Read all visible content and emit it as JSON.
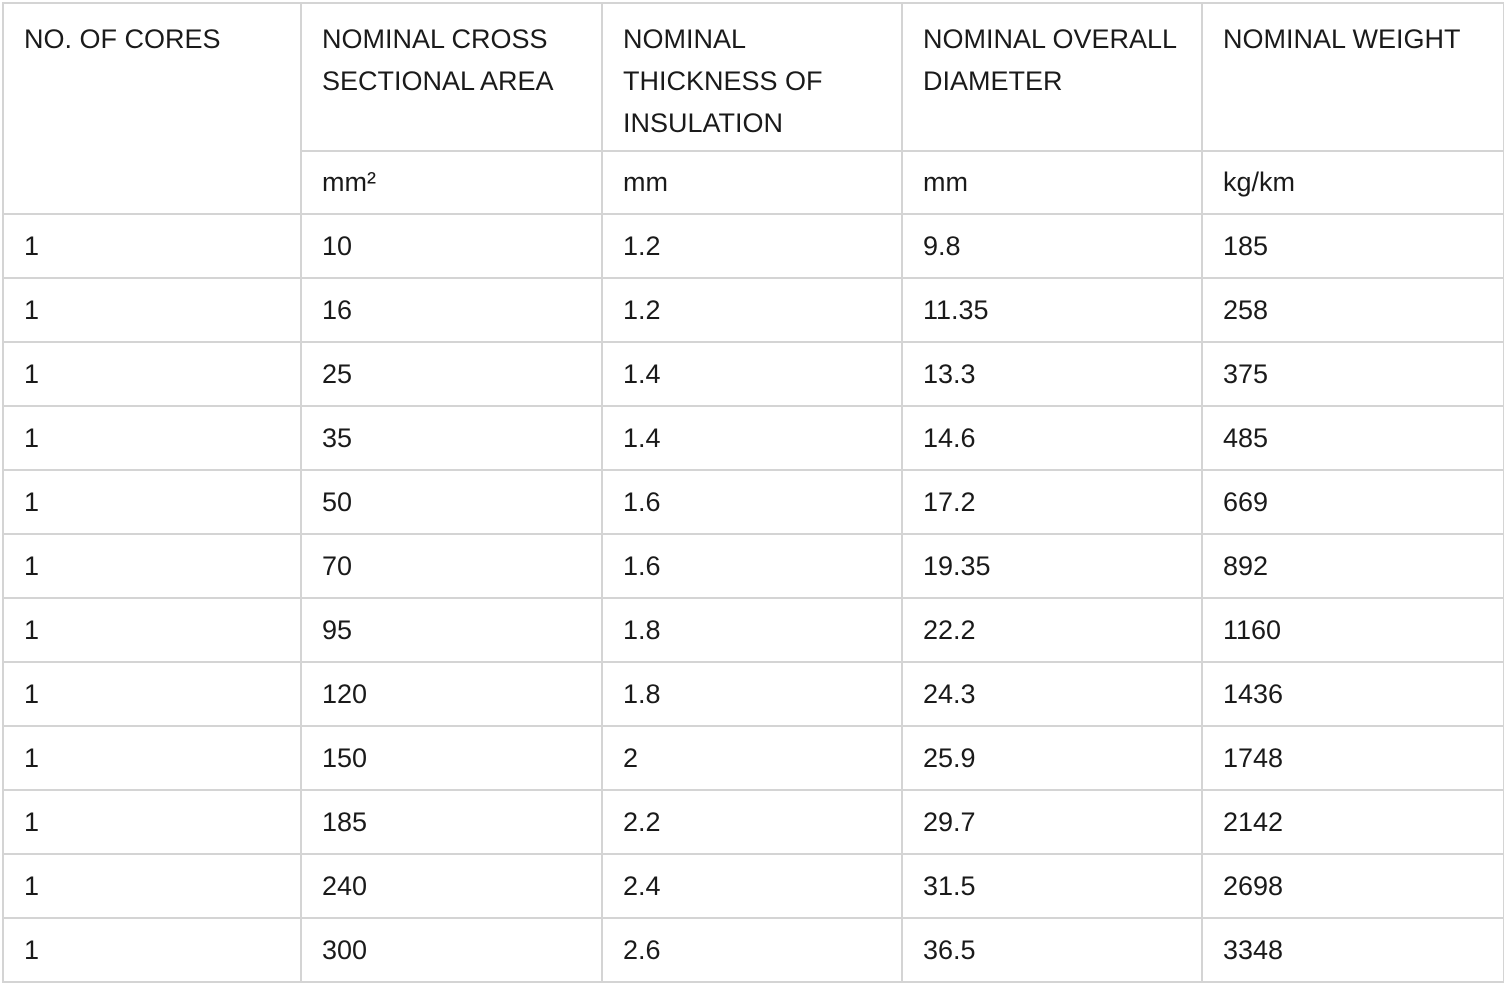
{
  "table": {
    "header": [
      "NO. OF CORES",
      "NOMINAL CROSS SECTIONAL AREA",
      "NOMINAL THICKNESS OF INSULATION",
      "NOMINAL OVERALL DIAMETER",
      "NOMINAL WEIGHT"
    ],
    "units": [
      "mm²",
      "mm",
      "mm",
      "kg/km"
    ],
    "rows": [
      [
        "1",
        "10",
        "1.2",
        "9.8",
        "185"
      ],
      [
        "1",
        "16",
        "1.2",
        "11.35",
        "258"
      ],
      [
        "1",
        "25",
        "1.4",
        "13.3",
        "375"
      ],
      [
        "1",
        "35",
        "1.4",
        "14.6",
        "485"
      ],
      [
        "1",
        "50",
        "1.6",
        "17.2",
        "669"
      ],
      [
        "1",
        "70",
        "1.6",
        "19.35",
        "892"
      ],
      [
        "1",
        "95",
        "1.8",
        "22.2",
        "1160"
      ],
      [
        "1",
        "120",
        "1.8",
        "24.3",
        "1436"
      ],
      [
        "1",
        "150",
        "2",
        "25.9",
        "1748"
      ],
      [
        "1",
        "185",
        "2.2",
        "29.7",
        "2142"
      ],
      [
        "1",
        "240",
        "2.4",
        "31.5",
        "2698"
      ],
      [
        "1",
        "300",
        "2.6",
        "36.5",
        "3348"
      ]
    ]
  }
}
